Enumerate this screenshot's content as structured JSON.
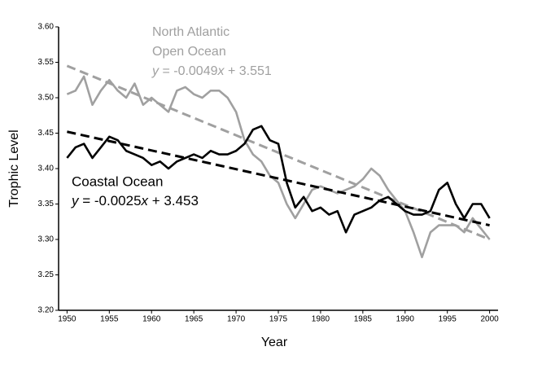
{
  "chart_data": {
    "type": "line",
    "x_label": "Year",
    "y_label": "Trophic Level",
    "x": [
      1950,
      1951,
      1952,
      1953,
      1954,
      1955,
      1956,
      1957,
      1958,
      1959,
      1960,
      1961,
      1962,
      1963,
      1964,
      1965,
      1966,
      1967,
      1968,
      1969,
      1970,
      1971,
      1972,
      1973,
      1974,
      1975,
      1976,
      1977,
      1978,
      1979,
      1980,
      1981,
      1982,
      1983,
      1984,
      1985,
      1986,
      1987,
      1988,
      1989,
      1990,
      1991,
      1992,
      1993,
      1994,
      1995,
      1996,
      1997,
      1998,
      1999,
      2000
    ],
    "trend_x": [
      1950,
      2000
    ],
    "series": [
      {
        "label_lines": [
          "North Atlantic",
          "Open Ocean"
        ],
        "equation": "y = -0.0049x + 3.551",
        "color": "#a0a0a0",
        "values": [
          3.505,
          3.51,
          3.53,
          3.49,
          3.51,
          3.525,
          3.51,
          3.5,
          3.52,
          3.49,
          3.5,
          3.49,
          3.48,
          3.51,
          3.515,
          3.505,
          3.5,
          3.51,
          3.51,
          3.5,
          3.48,
          3.44,
          3.42,
          3.41,
          3.39,
          3.38,
          3.35,
          3.33,
          3.35,
          3.37,
          3.375,
          3.37,
          3.365,
          3.37,
          3.375,
          3.385,
          3.4,
          3.39,
          3.37,
          3.355,
          3.34,
          3.31,
          3.275,
          3.31,
          3.32,
          3.32,
          3.32,
          3.31,
          3.33,
          3.315,
          3.3
        ],
        "trend": [
          3.545,
          3.3
        ]
      },
      {
        "label_lines": [
          "Coastal Ocean"
        ],
        "equation": "y = -0.0025x + 3.453",
        "color": "#000000",
        "values": [
          3.415,
          3.43,
          3.435,
          3.415,
          3.43,
          3.445,
          3.44,
          3.425,
          3.42,
          3.415,
          3.405,
          3.41,
          3.4,
          3.41,
          3.415,
          3.42,
          3.415,
          3.425,
          3.42,
          3.42,
          3.425,
          3.435,
          3.455,
          3.46,
          3.44,
          3.435,
          3.38,
          3.345,
          3.36,
          3.34,
          3.345,
          3.335,
          3.34,
          3.31,
          3.335,
          3.34,
          3.345,
          3.355,
          3.36,
          3.35,
          3.34,
          3.335,
          3.335,
          3.34,
          3.37,
          3.38,
          3.35,
          3.33,
          3.35,
          3.35,
          3.33
        ],
        "trend": [
          3.452,
          3.32
        ]
      }
    ],
    "xlim": [
      1949,
      2001
    ],
    "xticks": [
      1950,
      1955,
      1960,
      1965,
      1970,
      1975,
      1980,
      1985,
      1990,
      1995,
      2000
    ],
    "ylim": [
      3.2,
      3.6
    ],
    "yticks": [
      {
        "value": 3.2,
        "label": "3.20"
      },
      {
        "value": 3.25,
        "label": "3.25"
      },
      {
        "value": 3.3,
        "label": "3.30"
      },
      {
        "value": 3.35,
        "label": "3.35"
      },
      {
        "value": 3.4,
        "label": "3.40"
      },
      {
        "value": 3.45,
        "label": "3.45"
      },
      {
        "value": 3.5,
        "label": "3.50"
      },
      {
        "value": 3.55,
        "label": "3.55"
      },
      {
        "value": 3.6,
        "label": "3.60"
      }
    ]
  }
}
